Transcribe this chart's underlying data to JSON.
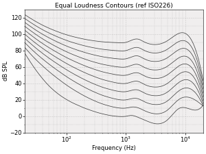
{
  "title": "Equal Loudness Contours (ref ISO226)",
  "xlabel": "Frequency (Hz)",
  "ylabel": "dB SPL",
  "xlim": [
    20,
    20000
  ],
  "ylim": [
    -20,
    130
  ],
  "yticks": [
    -20,
    0,
    20,
    40,
    60,
    80,
    100,
    120
  ],
  "xticks": [
    100,
    1000,
    10000
  ],
  "xtick_labels": [
    "10^2",
    "10^3",
    "10^4"
  ],
  "phon_levels": [
    0,
    10,
    20,
    30,
    40,
    50,
    60,
    70,
    80,
    90
  ],
  "line_color": "#444444",
  "background_color": "#ffffff",
  "axes_bg_color": "#f0eeee",
  "grid_color": "#aaaaaa",
  "title_fontsize": 6.5,
  "label_fontsize": 6,
  "tick_fontsize": 6
}
